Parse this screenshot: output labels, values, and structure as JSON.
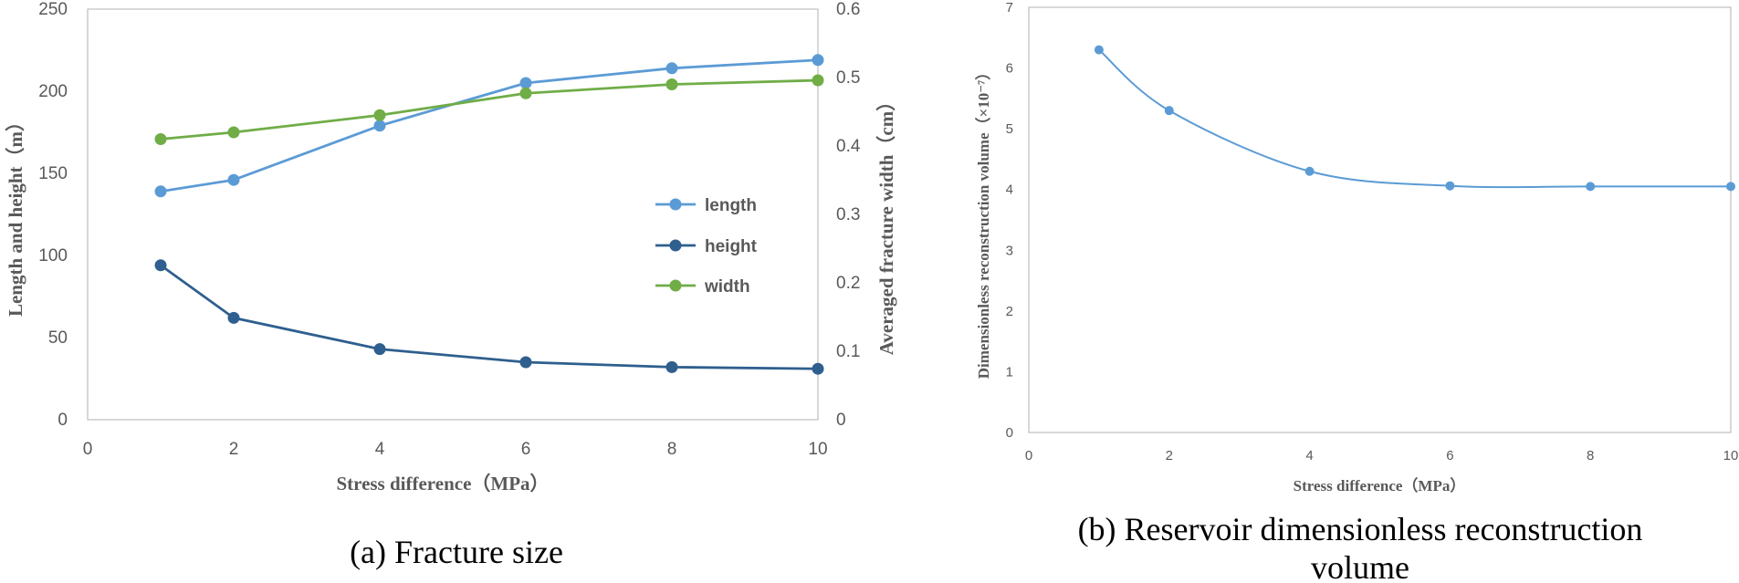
{
  "chart_data": [
    {
      "type": "line",
      "caption": "(a) Fracture size",
      "xlabel": "Stress difference（MPa）",
      "ylabel": "Length and height（m）",
      "y2label": "Averaged fracture width（cm）",
      "xlim": [
        0,
        10
      ],
      "ylim": [
        0,
        250
      ],
      "y2lim": [
        0,
        0.6
      ],
      "x_ticks": [
        "0",
        "2",
        "4",
        "6",
        "8",
        "10"
      ],
      "y_ticks": [
        "0",
        "50",
        "100",
        "150",
        "200",
        "250"
      ],
      "y2_ticks": [
        "0",
        "0.1",
        "0.2",
        "0.3",
        "0.4",
        "0.5",
        "0.6"
      ],
      "x": [
        1,
        2,
        4,
        6,
        8,
        10
      ],
      "series": [
        {
          "name": "length",
          "axis": "left",
          "color": "#5B9BD5",
          "values": [
            139,
            146,
            179,
            205,
            214,
            219
          ]
        },
        {
          "name": "height",
          "axis": "left",
          "color": "#2E5F8E",
          "values": [
            94,
            62,
            43,
            35,
            32,
            31
          ]
        },
        {
          "name": "width",
          "axis": "right",
          "color": "#70AD47",
          "values": [
            0.41,
            0.42,
            0.445,
            0.477,
            0.49,
            0.496
          ]
        }
      ],
      "legend": "center-right"
    },
    {
      "type": "line",
      "caption": "(b) Reservoir dimensionless reconstruction volume",
      "xlabel": "Stress difference（MPa）",
      "ylabel": "Dimensionless reconstruction volume（×10⁻⁷）",
      "xlim": [
        0,
        10
      ],
      "ylim": [
        0,
        7
      ],
      "x_ticks": [
        "0",
        "2",
        "4",
        "6",
        "8",
        "10"
      ],
      "y_ticks": [
        "0",
        "1",
        "2",
        "3",
        "4",
        "5",
        "6",
        "7"
      ],
      "x": [
        1,
        2,
        4,
        6,
        8,
        10
      ],
      "series": [
        {
          "name": "volume",
          "color": "#5B9BD5",
          "values": [
            6.3,
            5.3,
            4.3,
            4.06,
            4.05,
            4.05
          ]
        }
      ]
    }
  ]
}
